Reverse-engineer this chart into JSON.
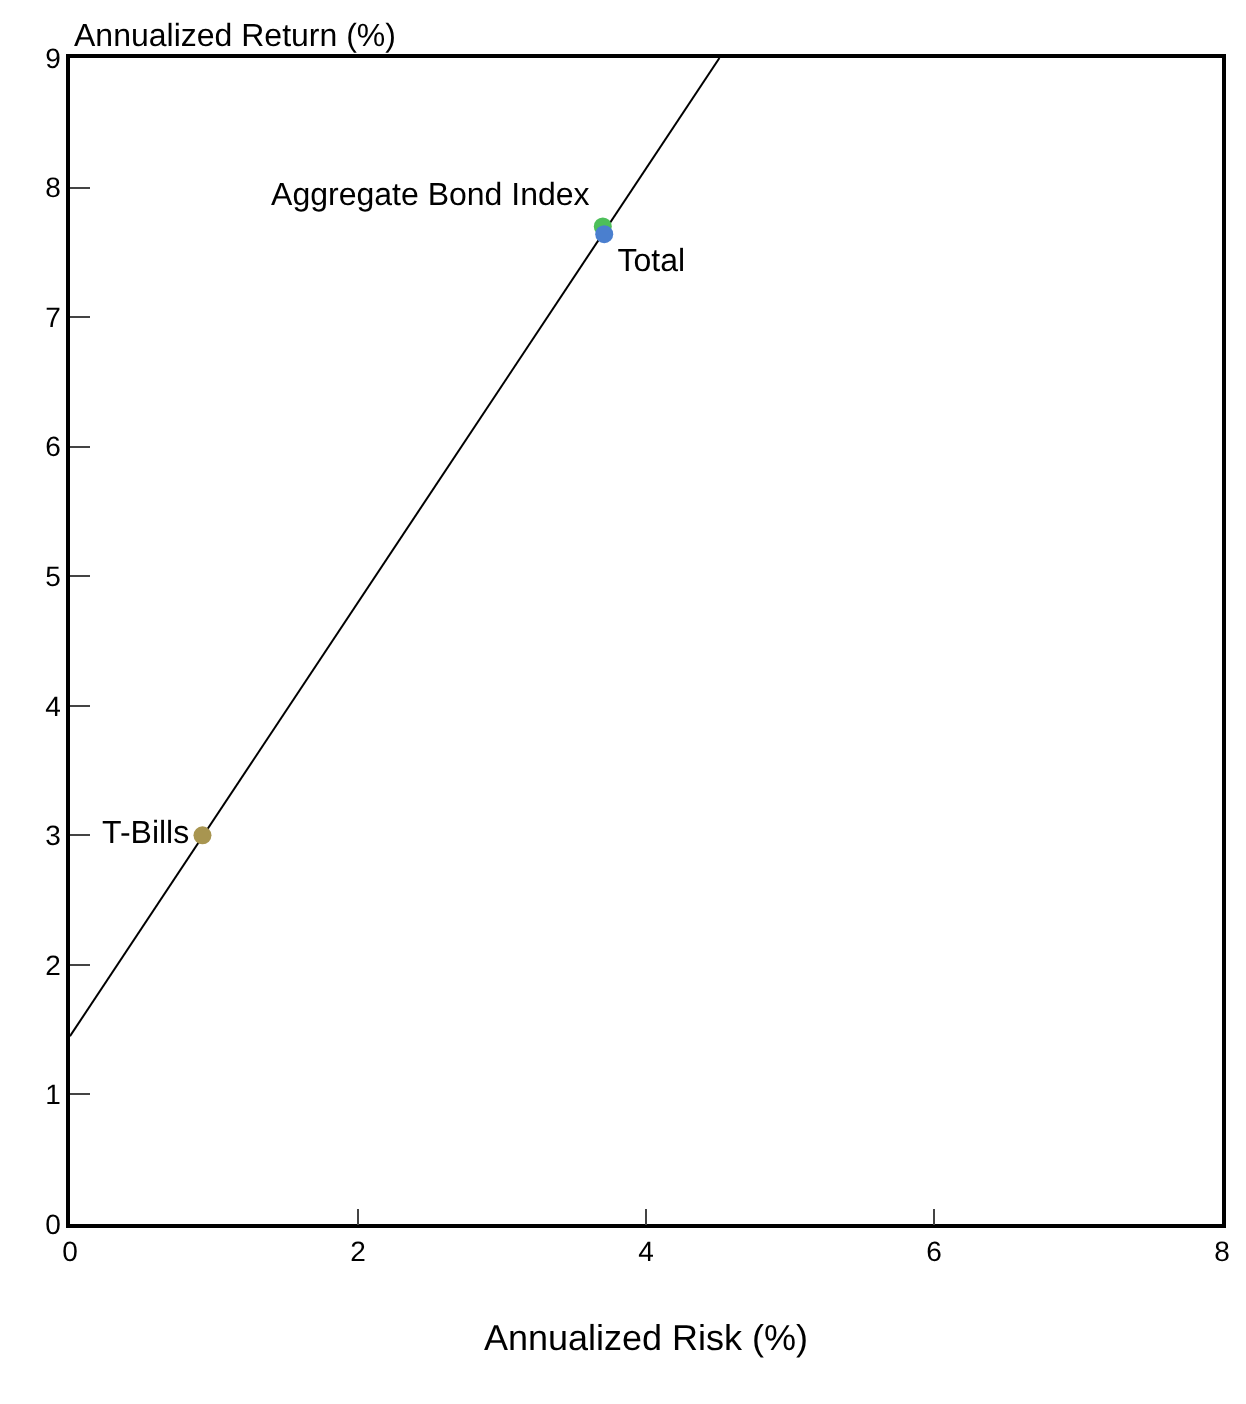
{
  "chart_data": {
    "type": "scatter",
    "xlabel": "Annualized Risk (%)",
    "ylabel": "Annualized Return (%)",
    "xlim": [
      0,
      8
    ],
    "xticks": [
      0,
      2,
      4,
      6,
      8
    ],
    "ylim": [
      0,
      9
    ],
    "yticks": [
      0,
      1,
      2,
      3,
      4,
      5,
      6,
      7,
      8,
      9
    ],
    "legend": false,
    "marker": "circle",
    "series": [
      {
        "type": "line",
        "marker": "none",
        "color": "#000000",
        "x": [
          0,
          4.51
        ],
        "values": [
          1.45,
          9
        ]
      },
      {
        "name": "Aggregate Bond Index",
        "color": "#4dbf5a",
        "x": [
          3.7
        ],
        "values": [
          7.7
        ]
      },
      {
        "name": "Total",
        "color": "#4a7fcf",
        "x": [
          3.71
        ],
        "values": [
          7.64
        ]
      },
      {
        "name": "T-Bills",
        "color": "#a89550",
        "x": [
          0.92
        ],
        "values": [
          3.0
        ]
      }
    ]
  }
}
